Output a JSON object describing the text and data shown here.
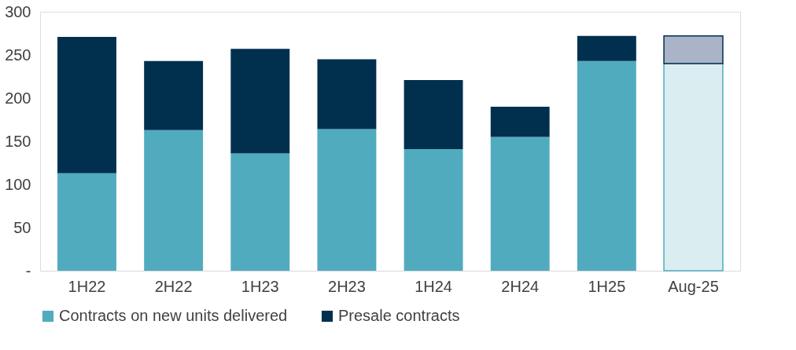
{
  "chart_data": {
    "type": "bar",
    "stacked": true,
    "categories": [
      "1H22",
      "2H22",
      "1H23",
      "2H23",
      "1H24",
      "2H24",
      "1H25",
      "Aug-25"
    ],
    "series": [
      {
        "name": "Contracts on new units delivered",
        "color": "#51abbf",
        "colors": [
          "#51abbf",
          "#51abbf",
          "#51abbf",
          "#51abbf",
          "#51abbf",
          "#51abbf",
          "#51abbf",
          "#daedf1"
        ],
        "values": [
          113,
          163,
          136,
          164,
          141,
          155,
          243,
          240
        ]
      },
      {
        "name": "Presale contracts",
        "color": "#01304f",
        "colors": [
          "#01304f",
          "#01304f",
          "#01304f",
          "#01304f",
          "#01304f",
          "#01304f",
          "#01304f",
          "#a9b4c8"
        ],
        "values": [
          158,
          80,
          121,
          81,
          80,
          35,
          29,
          32
        ]
      }
    ],
    "ylim": [
      0,
      300
    ],
    "yticks": [
      {
        "value": 0,
        "label": "-"
      },
      50,
      100,
      150,
      200,
      250,
      300
    ],
    "grid": false,
    "legend": "bottom"
  }
}
